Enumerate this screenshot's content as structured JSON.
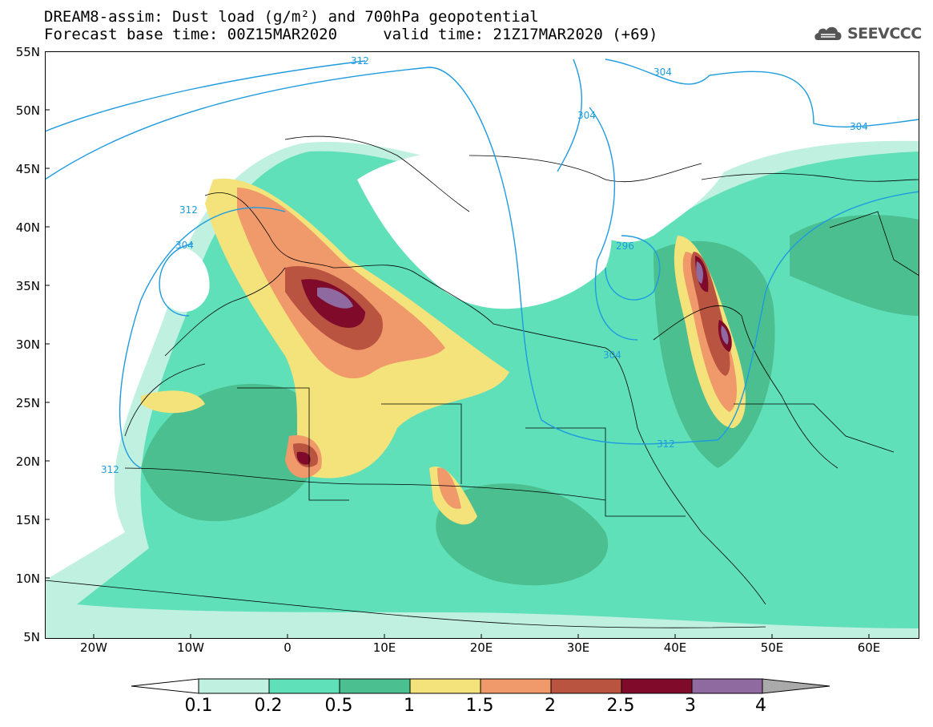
{
  "title": {
    "line1": "DREAM8-assim: Dust load (g/m²) and 700hPa geopotential",
    "line2": "Forecast base time: 00Z15MAR2020     valid time: 21Z17MAR2020 (+69)"
  },
  "logo": {
    "text": "SEEVCCC",
    "icon": "cloud-icon"
  },
  "axes": {
    "lat_ticks": [
      "55N",
      "50N",
      "45N",
      "40N",
      "35N",
      "30N",
      "25N",
      "20N",
      "15N",
      "10N",
      "5N"
    ],
    "lon_ticks": [
      "20W",
      "10W",
      "0",
      "10E",
      "20E",
      "30E",
      "40E",
      "50E",
      "60E"
    ]
  },
  "contours": {
    "labels": [
      "312",
      "304",
      "304",
      "304",
      "312",
      "304",
      "296",
      "304",
      "312",
      "312"
    ]
  },
  "colorbar": {
    "labels": [
      "0.1",
      "0.2",
      "0.5",
      "1",
      "1.5",
      "2",
      "2.5",
      "3",
      "4"
    ],
    "colors": [
      "#ffffff",
      "#bff0e0",
      "#5fe0b8",
      "#4bbf8f",
      "#f3e37a",
      "#f0996a",
      "#b8543f",
      "#7f0a2a",
      "#8e6aa0",
      "#aaaaaa"
    ]
  }
}
